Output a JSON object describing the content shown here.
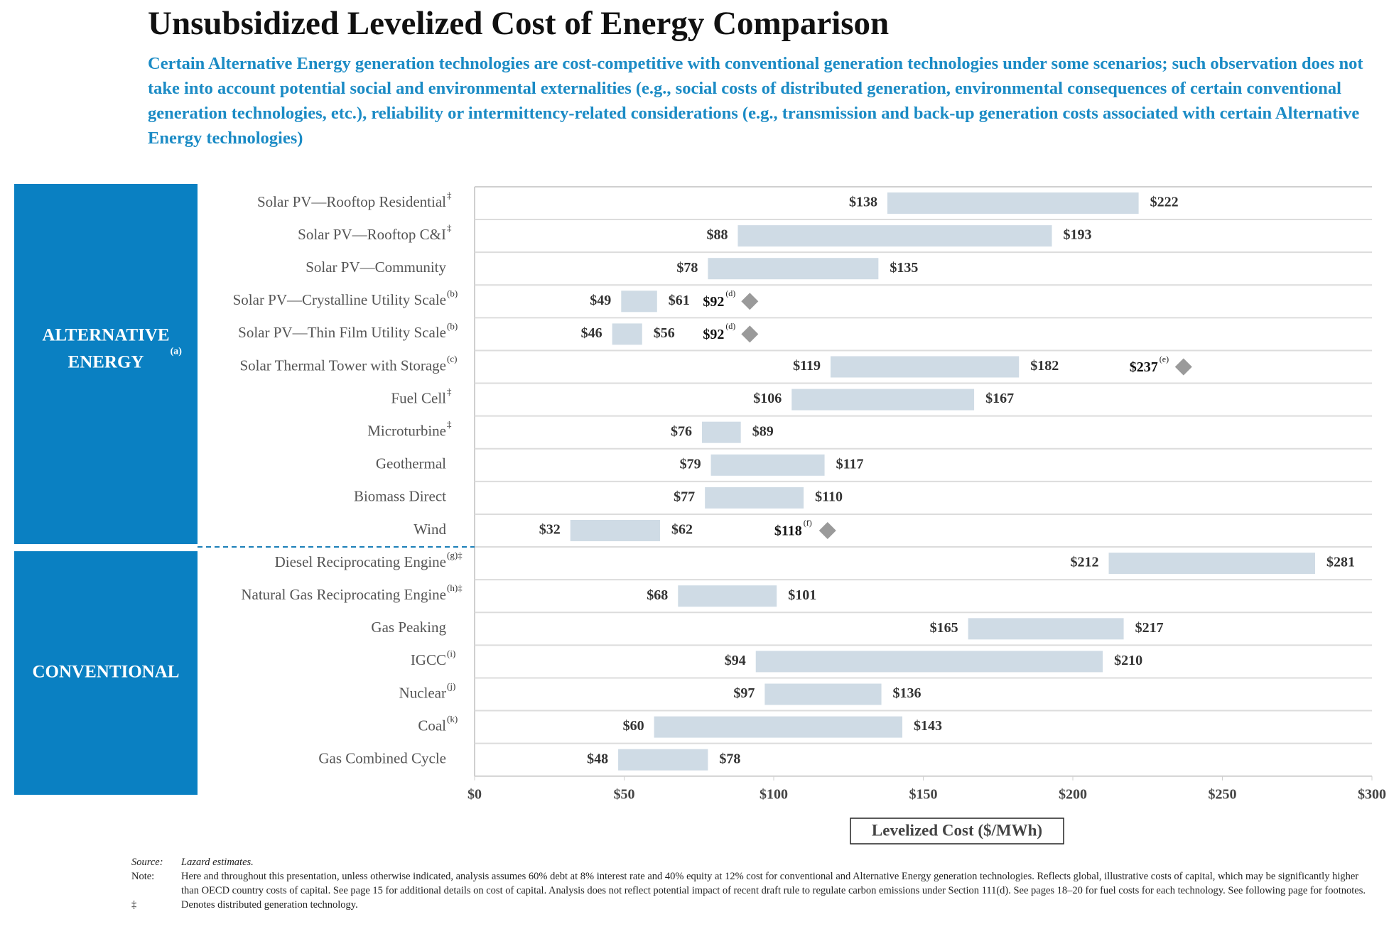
{
  "chart_data": {
    "type": "range-bar",
    "title": "Unsubsidized Levelized Cost of Energy Comparison",
    "subtitle": "Certain Alternative Energy generation technologies are cost-competitive with conventional generation technologies under some scenarios; such observation does not take into account potential social and environmental externalities (e.g., social costs of distributed generation, environmental consequences of certain conventional generation technologies, etc.), reliability or intermittency-related considerations (e.g., transmission and back-up generation costs associated with certain Alternative Energy technologies)",
    "color": "#cfdbe5",
    "marker_color": "#9a9a9a",
    "group_color": "#0a80c2",
    "xlim": [
      0,
      300
    ],
    "xticks": [
      {
        "value": 0,
        "label": "$0"
      },
      {
        "value": 50,
        "label": "$50"
      },
      {
        "value": 100,
        "label": "$100"
      },
      {
        "value": 150,
        "label": "$150"
      },
      {
        "value": 200,
        "label": "$200"
      },
      {
        "value": 250,
        "label": "$250"
      },
      {
        "value": 300,
        "label": "$300"
      }
    ],
    "x_label": "Levelized Cost ($/MWh)",
    "groups": [
      {
        "label": "ALTERNATIVE ENERGY",
        "label_note": "(a)",
        "categories": [
          "Solar PV—Rooftop Residential",
          "Solar PV—Rooftop C&I",
          "Solar PV—Community",
          "Solar PV—Crystalline Utility Scale",
          "Solar PV—Thin Film Utility Scale",
          "Solar Thermal Tower with Storage",
          "Fuel Cell",
          "Microturbine",
          "Geothermal",
          "Biomass Direct",
          "Wind"
        ],
        "category_notes": [
          "‡",
          "‡",
          null,
          "(b)",
          "(b)",
          "(c)",
          "‡",
          "‡",
          null,
          null,
          null
        ],
        "low": {
          "values": [
            138,
            88,
            78,
            49,
            46,
            119,
            106,
            76,
            79,
            77,
            32
          ],
          "value_labels": [
            "$138",
            "$88",
            "$78",
            "$49",
            "$46",
            "$119",
            "$106",
            "$76",
            "$79",
            "$77",
            "$32"
          ]
        },
        "high": {
          "values": [
            222,
            193,
            135,
            61,
            56,
            182,
            167,
            89,
            117,
            110,
            62
          ],
          "value_labels": [
            "$222",
            "$193",
            "$135",
            "$61",
            "$56",
            "$182",
            "$167",
            "$89",
            "$117",
            "$110",
            "$62"
          ]
        },
        "marker": {
          "values": [
            null,
            null,
            null,
            92,
            92,
            237,
            null,
            null,
            null,
            null,
            118
          ],
          "value_labels": [
            null,
            null,
            null,
            "$92",
            "$92",
            "$237",
            null,
            null,
            null,
            null,
            "$118"
          ],
          "notes": [
            null,
            null,
            null,
            "(d)",
            "(d)",
            "(e)",
            null,
            null,
            null,
            null,
            "(f)"
          ]
        }
      },
      {
        "label": "CONVENTIONAL",
        "label_note": null,
        "categories": [
          "Diesel Reciprocating Engine",
          "Natural Gas Reciprocating Engine",
          "Gas Peaking",
          "IGCC",
          "Nuclear",
          "Coal",
          "Gas Combined Cycle"
        ],
        "category_notes": [
          "(g)‡",
          "(h)‡",
          null,
          "(i)",
          "(j)",
          "(k)",
          null
        ],
        "low": {
          "values": [
            212,
            68,
            165,
            94,
            97,
            60,
            48
          ],
          "value_labels": [
            "$212",
            "$68",
            "$165",
            "$94",
            "$97",
            "$60",
            "$48"
          ]
        },
        "high": {
          "values": [
            281,
            101,
            217,
            210,
            136,
            143,
            78
          ],
          "value_labels": [
            "$281",
            "$101",
            "$217",
            "$210",
            "$136",
            "$143",
            "$78"
          ]
        },
        "marker": {
          "values": [
            null,
            null,
            null,
            null,
            null,
            null,
            null
          ],
          "value_labels": [
            null,
            null,
            null,
            null,
            null,
            null,
            null
          ],
          "notes": [
            null,
            null,
            null,
            null,
            null,
            null,
            null
          ]
        }
      }
    ],
    "footnotes": [
      {
        "label": "Source:",
        "text": "Lazard estimates."
      },
      {
        "label": "Note:",
        "text": "Here and throughout this presentation, unless otherwise indicated, analysis assumes 60% debt at 8% interest rate and 40% equity at 12% cost for conventional and Alternative Energy generation technologies. Reflects global, illustrative costs of capital, which may be significantly higher than OECD country costs of capital. See page 15 for additional details on cost of capital. Analysis does not reflect potential impact of recent draft rule to regulate carbon emissions under Section 111(d). See pages 18–20 for fuel costs for each technology. See following page for footnotes."
      },
      {
        "label": "‡",
        "text": "Denotes distributed generation technology."
      }
    ]
  }
}
